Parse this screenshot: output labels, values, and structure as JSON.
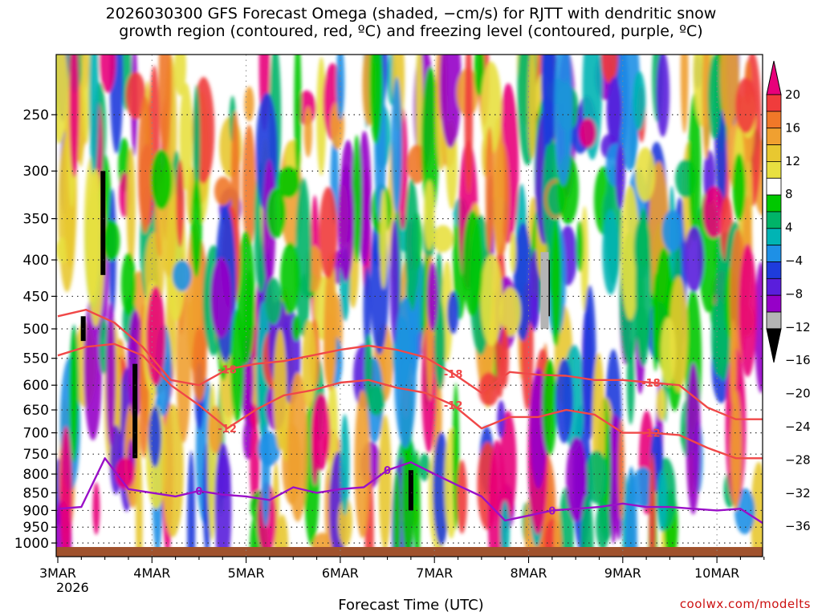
{
  "title": "2026030300 GFS Forecast Omega (shaded, −cm/s) for RJTT with dendritic snow\ngrowth region (contoured, red, ºC) and freezing level (contoured, purple, ºC)",
  "credit": "coolwx.com/modelts",
  "colors": {
    "snow_growth_contour": "#f04848",
    "freezing_contour": "#9a10c8",
    "terrain": "#a0522d",
    "grid": "#333333"
  },
  "chart_data": {
    "type": "heatmap",
    "title": "2026030300 GFS Forecast Omega (shaded, −cm/s) for RJTT with dendritic snow growth region (contoured, red, ºC) and freezing level (contoured, purple, ºC)",
    "xlabel": "Forecast Time (UTC)",
    "ylabel": "",
    "x_ticks": [
      "3MAR",
      "4MAR",
      "5MAR",
      "6MAR",
      "7MAR",
      "8MAR",
      "9MAR",
      "10MAR"
    ],
    "x_year": "2026",
    "x_range_days": [
      0,
      7.5
    ],
    "y_ticks": [
      250,
      300,
      350,
      400,
      450,
      500,
      550,
      600,
      650,
      700,
      750,
      800,
      850,
      900,
      950,
      1000
    ],
    "ylim": [
      1015,
      200
    ],
    "y_scale": "log",
    "grid": true,
    "colorbar": {
      "labels": [
        "20",
        "16",
        "12",
        "8",
        "4",
        "−4",
        "−8",
        "−12",
        "−16",
        "−20",
        "−24",
        "−28",
        "−32",
        "−36"
      ],
      "colors": [
        "#e8007a",
        "#f03c3c",
        "#f07828",
        "#f0a030",
        "#e8c830",
        "#e8e040",
        "#ffffff",
        "#00c800",
        "#00b468",
        "#00b4b4",
        "#1e90e6",
        "#1e3cdc",
        "#5a1edc",
        "#9600c8",
        "#b4b4b4",
        "#000000"
      ]
    },
    "contours": {
      "snow_growth_12": {
        "label": "-12",
        "x": [
          0,
          0.3,
          0.6,
          0.9,
          1.2,
          1.5,
          1.8,
          2.1,
          2.4,
          2.7,
          3.0,
          3.3,
          3.6,
          3.9,
          4.2,
          4.5,
          4.8,
          5.1,
          5.4,
          5.7,
          6.0,
          6.3,
          6.6,
          6.9,
          7.2,
          7.5
        ],
        "p": [
          545,
          530,
          525,
          545,
          600,
          640,
          690,
          650,
          620,
          610,
          595,
          590,
          605,
          615,
          640,
          690,
          665,
          665,
          650,
          660,
          700,
          700,
          705,
          735,
          760,
          760
        ]
      },
      "snow_growth_18": {
        "label": "-18",
        "x": [
          0,
          0.3,
          0.6,
          0.9,
          1.2,
          1.5,
          1.8,
          2.1,
          2.4,
          2.7,
          3.0,
          3.3,
          3.6,
          3.9,
          4.2,
          4.5,
          4.8,
          5.1,
          5.4,
          5.7,
          6.0,
          6.3,
          6.6,
          6.9,
          7.2,
          7.5
        ],
        "p": [
          480,
          470,
          490,
          530,
          590,
          600,
          570,
          560,
          555,
          545,
          535,
          528,
          535,
          548,
          578,
          615,
          575,
          580,
          582,
          590,
          590,
          595,
          600,
          645,
          670,
          670
        ]
      },
      "freezing_0": {
        "label": "0",
        "x": [
          0,
          0.25,
          0.5,
          0.75,
          1.0,
          1.25,
          1.5,
          1.75,
          2.0,
          2.25,
          2.5,
          2.75,
          3.0,
          3.25,
          3.5,
          3.75,
          4.0,
          4.25,
          4.5,
          4.75,
          5.0,
          5.25,
          5.5,
          5.75,
          6.0,
          6.25,
          6.5,
          6.75,
          7.0,
          7.25,
          7.5
        ],
        "p": [
          895,
          890,
          760,
          840,
          850,
          860,
          845,
          855,
          860,
          870,
          835,
          850,
          840,
          835,
          790,
          770,
          800,
          830,
          860,
          930,
          915,
          900,
          895,
          890,
          880,
          890,
          890,
          895,
          900,
          895,
          940
        ]
      }
    }
  }
}
